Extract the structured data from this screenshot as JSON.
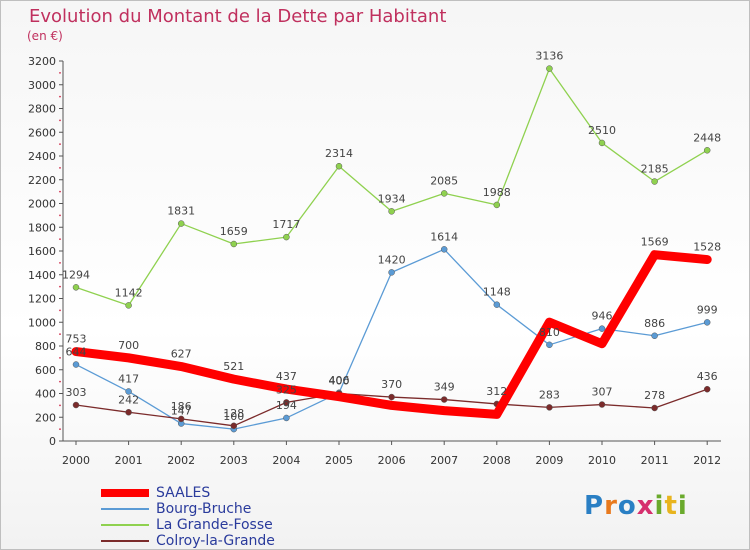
{
  "title": "Evolution du Montant de la Dette par Habitant",
  "unit_label": "(en €)",
  "logo": {
    "text": "Proxiti",
    "letter_colors": [
      "#2a7fc4",
      "#e87a1e",
      "#2a7fc4",
      "#d62f6e",
      "#6aaa2c",
      "#e8b41e",
      "#6aaa2c"
    ]
  },
  "chart_data": {
    "type": "line",
    "x": [
      "2000",
      "2001",
      "2002",
      "2003",
      "2004",
      "2005",
      "2006",
      "2007",
      "2008",
      "2009",
      "2010",
      "2011",
      "2012"
    ],
    "ylim": [
      0,
      3200
    ],
    "yticks": [
      0,
      200,
      400,
      600,
      800,
      1000,
      1200,
      1400,
      1600,
      1800,
      2000,
      2200,
      2400,
      2600,
      2800,
      3000,
      3200
    ],
    "grid": false,
    "legend_position": "bottom-left",
    "series": [
      {
        "name": "SAALES",
        "color": "#ff0000",
        "width": 9,
        "values": [
          753,
          700,
          627,
          521,
          437,
          373,
          300,
          256,
          224,
          1001,
          819,
          1569,
          1528
        ],
        "labels": [
          "753",
          "700",
          "627",
          "521",
          "437",
          "",
          "",
          "",
          "",
          "",
          "",
          "1569",
          "1528"
        ]
      },
      {
        "name": "Bourg-Bruche",
        "color": "#5b9bd5",
        "width": 1.3,
        "values": [
          644,
          417,
          147,
          100,
          194,
          406,
          1420,
          1614,
          1148,
          810,
          946,
          886,
          999
        ],
        "labels": [
          "644",
          "417",
          "147",
          "100",
          "194",
          "406",
          "1420",
          "1614",
          "1148",
          "810",
          "946",
          "886",
          "999"
        ]
      },
      {
        "name": "La Grande-Fosse",
        "color": "#8fd14f",
        "width": 1.3,
        "values": [
          1294,
          1142,
          1831,
          1659,
          1717,
          2314,
          1934,
          2085,
          1988,
          3136,
          2510,
          2185,
          2448
        ],
        "labels": [
          "1294",
          "1142",
          "1831",
          "1659",
          "1717",
          "2314",
          "1934",
          "2085",
          "1988",
          "3136",
          "2510",
          "2185",
          "2448"
        ]
      },
      {
        "name": "Colroy-la-Grande",
        "color": "#7b2b2b",
        "width": 1.3,
        "values": [
          303,
          242,
          186,
          128,
          325,
          400,
          370,
          349,
          312,
          283,
          307,
          278,
          436
        ],
        "labels": [
          "303",
          "242",
          "186",
          "128",
          "325",
          "400",
          "370",
          "349",
          "312",
          "283",
          "307",
          "278",
          "436"
        ]
      }
    ]
  }
}
